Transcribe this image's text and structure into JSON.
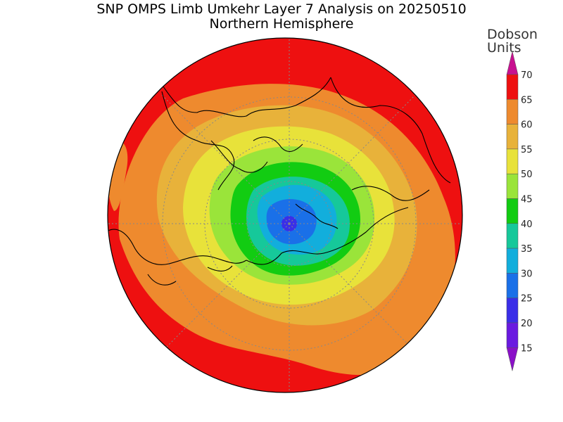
{
  "title": "SNP OMPS Limb Umkehr Layer 7 Analysis on 20250510",
  "subtitle": "Northern Hemisphere",
  "units_label": "Dobson\nUnits",
  "colorbar": {
    "levels": [
      {
        "min": 10,
        "max": 15,
        "color": "#8a10c8",
        "label": ""
      },
      {
        "min": 15,
        "max": 20,
        "color": "#6a1ae0",
        "label": "15"
      },
      {
        "min": 20,
        "max": 25,
        "color": "#3a2ee8",
        "label": "20"
      },
      {
        "min": 25,
        "max": 30,
        "color": "#1a70e8",
        "label": "25"
      },
      {
        "min": 30,
        "max": 35,
        "color": "#12aedc",
        "label": "30"
      },
      {
        "min": 35,
        "max": 40,
        "color": "#16c89a",
        "label": "35"
      },
      {
        "min": 40,
        "max": 45,
        "color": "#12cc12",
        "label": "40"
      },
      {
        "min": 45,
        "max": 50,
        "color": "#9ae43a",
        "label": "45"
      },
      {
        "min": 50,
        "max": 55,
        "color": "#e8e23a",
        "label": "50"
      },
      {
        "min": 55,
        "max": 60,
        "color": "#e8b23a",
        "label": "55"
      },
      {
        "min": 60,
        "max": 65,
        "color": "#ee8a2e",
        "label": "60"
      },
      {
        "min": 65,
        "max": 70,
        "color": "#ee1010",
        "label": "65"
      },
      {
        "min": 70,
        "max": 75,
        "color": "#c81090",
        "label": "70"
      }
    ]
  },
  "map_field": {
    "description_values_dobson": {
      "pole_min": 22,
      "outer_max": 68
    }
  }
}
